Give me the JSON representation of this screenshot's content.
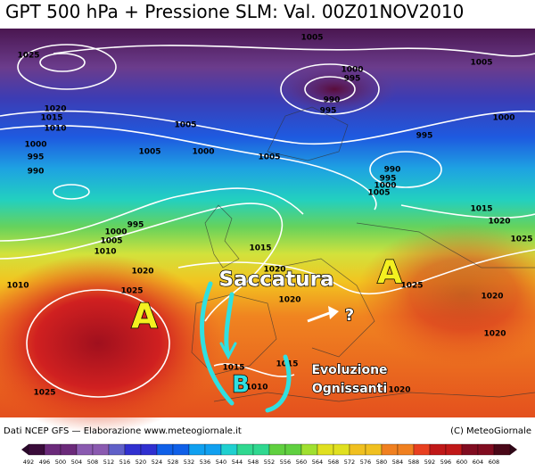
{
  "header": {
    "title": "GPT 500 hPa + Pressione SLM: Val. 00Z01NOV2010"
  },
  "annotations": {
    "high_west": "A",
    "high_east": "A",
    "low": "B",
    "trough": "Saccatura",
    "question": "?",
    "line1": "Evoluzione",
    "line2": "Ognissanti"
  },
  "isobar_labels": [
    "1025",
    "1005",
    "1005",
    "1000",
    "995",
    "990",
    "995",
    "1000",
    "1020",
    "1015",
    "1010",
    "1005",
    "995",
    "1000",
    "995",
    "990",
    "1005",
    "1000",
    "1005",
    "990",
    "995",
    "1000",
    "1005",
    "1015",
    "1020",
    "995",
    "1000",
    "1005",
    "1010",
    "1015",
    "1025",
    "1020",
    "1020",
    "1010",
    "1025",
    "1020",
    "1025",
    "1020",
    "1020",
    "1015",
    "1015",
    "1010",
    "1025",
    "1020"
  ],
  "footer": {
    "source": "Dati NCEP GFS — Elaborazione www.meteogiornale.it",
    "copyright": "(C) MeteoGiornale"
  },
  "color_scale": {
    "labels": [
      492,
      496,
      500,
      504,
      508,
      512,
      516,
      520,
      524,
      528,
      532,
      536,
      540,
      544,
      548,
      552,
      556,
      560,
      564,
      568,
      572,
      576,
      580,
      584,
      588,
      592,
      596,
      600,
      604,
      608
    ]
  }
}
